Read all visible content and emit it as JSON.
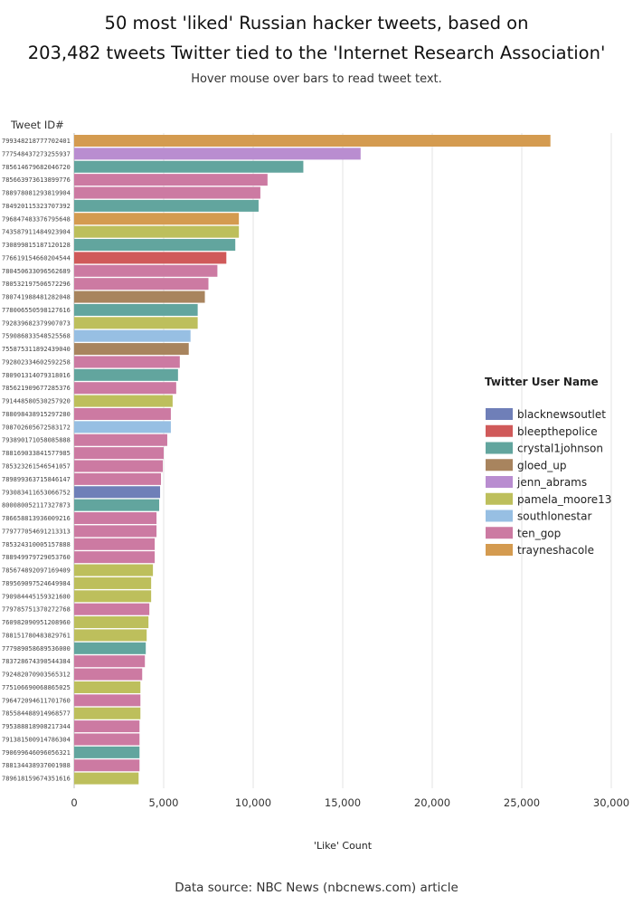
{
  "header": {
    "title_line1": "50 most 'liked' Russian hacker tweets, based on",
    "title_line2": "203,482 tweets Twitter tied to the 'Internet Research Association'",
    "subtitle": "Hover mouse over bars to read tweet text."
  },
  "footer": {
    "source": "Data source: NBC News (nbcnews.com) article"
  },
  "colors": {
    "blacknewsoutlet": "#6f7fb8",
    "bleepthepolice": "#d05a5a",
    "crystal1johnson": "#62a59e",
    "gloed_up": "#a8845e",
    "jenn_abrams": "#b98dd0",
    "pamela_moore13": "#bdbf5c",
    "southlonestar": "#97bfe3",
    "ten_gop": "#cc7aa2",
    "trayneshacole": "#d49b50"
  },
  "chart_data": {
    "type": "bar",
    "orientation": "horizontal",
    "ylabel": "Tweet ID#",
    "xlabel": "'Like' Count",
    "xlim": [
      0,
      30000
    ],
    "xticks": [
      0,
      5000,
      10000,
      15000,
      20000,
      25000,
      30000
    ],
    "xtick_labels": [
      "0",
      "5,000",
      "10,000",
      "15,000",
      "20,000",
      "25,000",
      "30,000"
    ],
    "grid": true,
    "legend": {
      "title": "Twitter User Name",
      "placement": "right",
      "entries": [
        "blacknewsoutlet",
        "bleepthepolice",
        "crystal1johnson",
        "gloed_up",
        "jenn_abrams",
        "pamela_moore13",
        "southlonestar",
        "ten_gop",
        "trayneshacole"
      ]
    },
    "bars": [
      {
        "id": "799348218777702401",
        "user": "trayneshacole",
        "value": 26600
      },
      {
        "id": "777548437273255937",
        "user": "jenn_abrams",
        "value": 16000
      },
      {
        "id": "785614679682046720",
        "user": "crystal1johnson",
        "value": 12800
      },
      {
        "id": "785663973613899776",
        "user": "ten_gop",
        "value": 10800
      },
      {
        "id": "788978081293819904",
        "user": "ten_gop",
        "value": 10400
      },
      {
        "id": "784920115323707392",
        "user": "crystal1johnson",
        "value": 10300
      },
      {
        "id": "796847483376795648",
        "user": "trayneshacole",
        "value": 9200
      },
      {
        "id": "743587911484923904",
        "user": "pamela_moore13",
        "value": 9200
      },
      {
        "id": "730899815187120128",
        "user": "crystal1johnson",
        "value": 9000
      },
      {
        "id": "776619154660204544",
        "user": "bleepthepolice",
        "value": 8500
      },
      {
        "id": "780450633096562689",
        "user": "ten_gop",
        "value": 8000
      },
      {
        "id": "780532197506572296",
        "user": "ten_gop",
        "value": 7500
      },
      {
        "id": "780741988481282048",
        "user": "gloed_up",
        "value": 7300
      },
      {
        "id": "778006550598127616",
        "user": "crystal1johnson",
        "value": 6900
      },
      {
        "id": "792839682379907073",
        "user": "pamela_moore13",
        "value": 6900
      },
      {
        "id": "759086833548525568",
        "user": "southlonestar",
        "value": 6500
      },
      {
        "id": "755875311892439040",
        "user": "gloed_up",
        "value": 6400
      },
      {
        "id": "792802334602592258",
        "user": "ten_gop",
        "value": 5900
      },
      {
        "id": "780901314079318016",
        "user": "crystal1johnson",
        "value": 5800
      },
      {
        "id": "785621909677285376",
        "user": "ten_gop",
        "value": 5700
      },
      {
        "id": "791448580530257920",
        "user": "pamela_moore13",
        "value": 5500
      },
      {
        "id": "788098438915297280",
        "user": "ten_gop",
        "value": 5400
      },
      {
        "id": "708702605672583172",
        "user": "southlonestar",
        "value": 5400
      },
      {
        "id": "793890171058085888",
        "user": "ten_gop",
        "value": 5200
      },
      {
        "id": "788169033841577985",
        "user": "ten_gop",
        "value": 5000
      },
      {
        "id": "785323261546541057",
        "user": "ten_gop",
        "value": 4950
      },
      {
        "id": "789899363715846147",
        "user": "ten_gop",
        "value": 4850
      },
      {
        "id": "793083411653066752",
        "user": "blacknewsoutlet",
        "value": 4800
      },
      {
        "id": "800080052117327873",
        "user": "crystal1johnson",
        "value": 4750
      },
      {
        "id": "786658813936009216",
        "user": "ten_gop",
        "value": 4600
      },
      {
        "id": "779777054691213313",
        "user": "ten_gop",
        "value": 4600
      },
      {
        "id": "785324310005157888",
        "user": "ten_gop",
        "value": 4500
      },
      {
        "id": "788949979729053760",
        "user": "ten_gop",
        "value": 4500
      },
      {
        "id": "785674892097169409",
        "user": "pamela_moore13",
        "value": 4400
      },
      {
        "id": "789569097524649984",
        "user": "pamela_moore13",
        "value": 4300
      },
      {
        "id": "790984445159321600",
        "user": "pamela_moore13",
        "value": 4300
      },
      {
        "id": "779785751370272768",
        "user": "ten_gop",
        "value": 4200
      },
      {
        "id": "760982090951208960",
        "user": "pamela_moore13",
        "value": 4150
      },
      {
        "id": "788151780483829761",
        "user": "pamela_moore13",
        "value": 4050
      },
      {
        "id": "777989058689536000",
        "user": "crystal1johnson",
        "value": 4000
      },
      {
        "id": "783728674390544384",
        "user": "ten_gop",
        "value": 3950
      },
      {
        "id": "792482070903565312",
        "user": "ten_gop",
        "value": 3800
      },
      {
        "id": "775106690068865025",
        "user": "pamela_moore13",
        "value": 3700
      },
      {
        "id": "796472094611701760",
        "user": "ten_gop",
        "value": 3700
      },
      {
        "id": "785584488914968577",
        "user": "pamela_moore13",
        "value": 3700
      },
      {
        "id": "795388818908217344",
        "user": "ten_gop",
        "value": 3650
      },
      {
        "id": "791381500914786304",
        "user": "ten_gop",
        "value": 3650
      },
      {
        "id": "790699646096056321",
        "user": "crystal1johnson",
        "value": 3650
      },
      {
        "id": "788134438937001988",
        "user": "ten_gop",
        "value": 3650
      },
      {
        "id": "789618159674351616",
        "user": "pamela_moore13",
        "value": 3600
      }
    ]
  }
}
